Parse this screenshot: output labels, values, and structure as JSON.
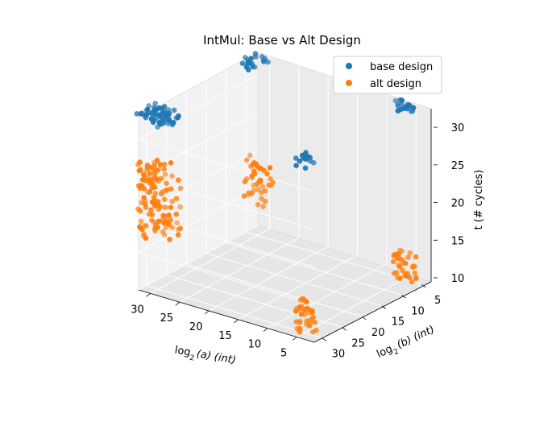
{
  "chart_data": {
    "type": "scatter",
    "title": "IntMul: Base vs Alt Design",
    "xlabel": "log",
    "xlabel_sub": "2",
    "xlabel_rest": "(a) (int)",
    "ylabel": "log",
    "ylabel_sub": "2",
    "ylabel_rest": "(b) (int)",
    "zlabel": "t (# cycles)",
    "xlim": [
      2,
      32
    ],
    "ylim": [
      2,
      32
    ],
    "zlim": [
      10,
      33
    ],
    "xticks": [
      "30",
      "25",
      "20",
      "15",
      "10",
      "5"
    ],
    "xtick_values": [
      30,
      25,
      20,
      15,
      10,
      5
    ],
    "yticks": [
      "5",
      "10",
      "15",
      "20",
      "25",
      "30"
    ],
    "ytick_values": [
      5,
      10,
      15,
      20,
      25,
      30
    ],
    "zticks": [
      "10",
      "15",
      "20",
      "25",
      "30"
    ],
    "ztick_values": [
      10,
      15,
      20,
      25,
      30
    ],
    "grid": true,
    "legend_position": "top-right",
    "series": [
      {
        "name": "base design",
        "color": "#1f77b4",
        "clusters": [
          {
            "a": 30,
            "b": 30,
            "t": 33,
            "n": 60,
            "spread": 2.5
          },
          {
            "a": 30,
            "b": 5,
            "t": 33,
            "n": 20,
            "spread": 2.0
          },
          {
            "a": 5,
            "b": 30,
            "t": 33,
            "n": 14,
            "spread": 1.5
          },
          {
            "a": 5,
            "b": 5,
            "t": 33,
            "n": 18,
            "spread": 1.5
          }
        ]
      },
      {
        "name": "alt design",
        "color": "#ff7f0e",
        "clusters": [
          {
            "a": 30,
            "b": 30,
            "t": 22,
            "n": 120,
            "spread": 2.5,
            "zspread": 5
          },
          {
            "a": 30,
            "b": 5,
            "t": 17,
            "n": 40,
            "spread": 2.0,
            "zspread": 3
          },
          {
            "a": 5,
            "b": 30,
            "t": 12,
            "n": 35,
            "spread": 1.5,
            "zspread": 2
          },
          {
            "a": 5,
            "b": 5,
            "t": 12,
            "n": 35,
            "spread": 1.5,
            "zspread": 2
          }
        ]
      }
    ]
  }
}
